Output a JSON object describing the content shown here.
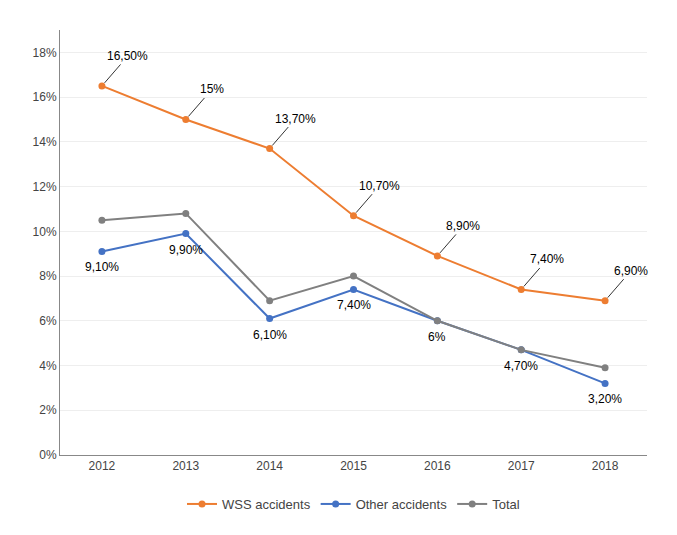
{
  "chart_data": {
    "type": "line",
    "x": [
      2012,
      2013,
      2014,
      2015,
      2016,
      2017,
      2018
    ],
    "series": [
      {
        "name": "WSS accidents",
        "color": "#ED7D31",
        "marker": "circle",
        "values": [
          16.5,
          15.0,
          13.7,
          10.7,
          8.9,
          7.4,
          6.9
        ],
        "value_labels": [
          "16,50%",
          "15%",
          "13,70%",
          "10,70%",
          "8,90%",
          "7,40%",
          "6,90%"
        ]
      },
      {
        "name": "Other accidents",
        "color": "#4472C4",
        "marker": "circle",
        "values": [
          9.1,
          9.9,
          6.1,
          7.4,
          6.0,
          4.7,
          3.2
        ],
        "value_labels": [
          "9,10%",
          "9,90%",
          "6,10%",
          "7,40%",
          "6%",
          "4,70%",
          "3,20%"
        ]
      },
      {
        "name": "Total",
        "color": "#808080",
        "marker": "circle",
        "values": [
          10.5,
          10.8,
          6.9,
          8.0,
          6.0,
          4.7,
          3.9
        ]
      }
    ],
    "xlim": [
      2011.5,
      2018.5
    ],
    "xticks": [
      2012,
      2013,
      2014,
      2015,
      2016,
      2017,
      2018
    ],
    "ylim": [
      0,
      19
    ],
    "yticks": [
      {
        "value": 0,
        "label": "0%"
      },
      {
        "value": 2,
        "label": "2%"
      },
      {
        "value": 4,
        "label": "4%"
      },
      {
        "value": 6,
        "label": "6%"
      },
      {
        "value": 8,
        "label": "8%"
      },
      {
        "value": 10,
        "label": "10%"
      },
      {
        "value": 12,
        "label": "12%"
      },
      {
        "value": 14,
        "label": "14%"
      },
      {
        "value": 16,
        "label": "16%"
      },
      {
        "value": 18,
        "label": "18%"
      }
    ],
    "grid": true,
    "legend": "bottom"
  }
}
